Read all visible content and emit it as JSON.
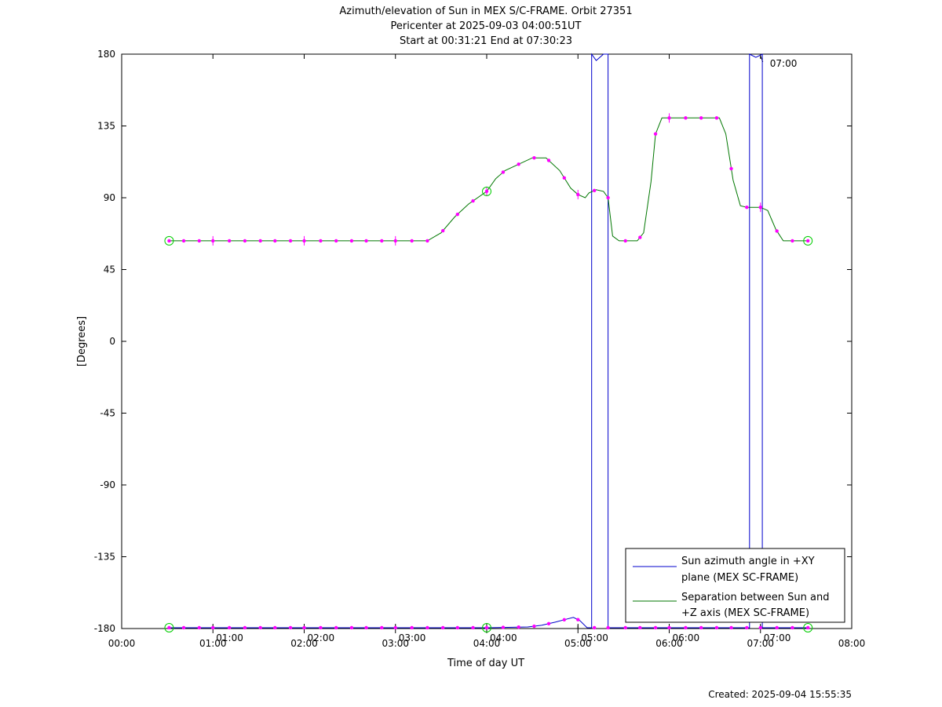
{
  "chart_data": {
    "type": "line",
    "title": [
      "Azimuth/elevation of Sun in MEX S/C-FRAME.  Orbit 27351",
      "Pericenter at 2025-09-03 04:00:51UT",
      "Start at 00:31:21 End at 07:30:23"
    ],
    "xlabel": "Time of day UT",
    "ylabel": "[Degrees]",
    "xlim": [
      0,
      8
    ],
    "ylim": [
      -180,
      180
    ],
    "x_ticks": [
      0,
      1,
      2,
      3,
      4,
      5,
      6,
      7,
      8
    ],
    "x_tick_labels": [
      "00:00",
      "01:00",
      "02:00",
      "03:00",
      "04:00",
      "05:00",
      "06:00",
      "07:00",
      "08:00"
    ],
    "y_ticks": [
      180,
      135,
      90,
      45,
      0,
      -45,
      -90,
      -135,
      -180
    ],
    "y_tick_labels": [
      "180",
      "135",
      "90",
      "45",
      "0",
      "-45",
      "-90",
      "-135",
      "-180"
    ],
    "orbit_time_labels": [
      {
        "x": 1.0,
        "text": "01:00"
      },
      {
        "x": 2.0,
        "text": "02:00"
      },
      {
        "x": 3.0,
        "text": "03:00"
      },
      {
        "x": 4.0,
        "text": "04:00"
      },
      {
        "x": 5.0,
        "text": "05:00"
      },
      {
        "x": 6.0,
        "text": "06:00"
      },
      {
        "x": 7.0,
        "text": "07:00"
      }
    ],
    "top_time_label": {
      "x": 7.0,
      "text": "07:00"
    },
    "series": [
      {
        "name": "Sun azimuth angle in +XY plane (MEX SC-FRAME)",
        "legend_lines": [
          "Sun azimuth angle in +XY",
          "plane (MEX SC-FRAME)"
        ],
        "color": "#0000cc",
        "points": [
          [
            0.52,
            -179.5
          ],
          [
            3.0,
            -179.5
          ],
          [
            4.0,
            -179.5
          ],
          [
            4.45,
            -179.0
          ],
          [
            4.6,
            -178.0
          ],
          [
            4.75,
            -176.0
          ],
          [
            4.85,
            -174.5
          ],
          [
            4.95,
            -173.0
          ],
          [
            5.02,
            -175.0
          ],
          [
            5.1,
            -179.5
          ],
          [
            5.15,
            -179.5
          ],
          [
            5.15,
            180
          ],
          [
            5.2,
            176
          ],
          [
            5.28,
            180
          ],
          [
            5.33,
            180
          ],
          [
            5.33,
            -179.5
          ],
          [
            6.0,
            -179.5
          ],
          [
            6.88,
            -179.5
          ],
          [
            6.88,
            180
          ],
          [
            6.95,
            178
          ],
          [
            7.02,
            180
          ],
          [
            7.02,
            -179.5
          ],
          [
            7.52,
            -179.5
          ]
        ]
      },
      {
        "name": "Separation between Sun and +Z axis (MEX SC-FRAME)",
        "legend_lines": [
          "Separation between Sun and",
          "+Z axis (MEX SC-FRAME)"
        ],
        "color": "#007700",
        "points": [
          [
            0.52,
            63.0
          ],
          [
            1.0,
            63.0
          ],
          [
            2.0,
            63.0
          ],
          [
            3.0,
            63.0
          ],
          [
            3.25,
            63.0
          ],
          [
            3.35,
            63.0
          ],
          [
            3.5,
            68.0
          ],
          [
            3.65,
            78.0
          ],
          [
            3.8,
            86.0
          ],
          [
            4.0,
            94.0
          ],
          [
            4.1,
            102.0
          ],
          [
            4.2,
            107.0
          ],
          [
            4.35,
            111.0
          ],
          [
            4.5,
            115.0
          ],
          [
            4.65,
            115.0
          ],
          [
            4.8,
            107.0
          ],
          [
            4.92,
            96.0
          ],
          [
            5.0,
            92.0
          ],
          [
            5.08,
            90.0
          ],
          [
            5.12,
            93.0
          ],
          [
            5.2,
            95.0
          ],
          [
            5.28,
            94.0
          ],
          [
            5.33,
            90.0
          ],
          [
            5.38,
            66.0
          ],
          [
            5.45,
            63.0
          ],
          [
            5.65,
            63.0
          ],
          [
            5.72,
            68.0
          ],
          [
            5.8,
            100.0
          ],
          [
            5.85,
            130.0
          ],
          [
            5.92,
            140.0
          ],
          [
            6.0,
            140.0
          ],
          [
            6.2,
            140.0
          ],
          [
            6.4,
            140.0
          ],
          [
            6.55,
            140.0
          ],
          [
            6.62,
            130.0
          ],
          [
            6.7,
            101.0
          ],
          [
            6.78,
            85.0
          ],
          [
            6.85,
            84.0
          ],
          [
            7.0,
            84.0
          ],
          [
            7.08,
            82.0
          ],
          [
            7.17,
            70.0
          ],
          [
            7.25,
            63.0
          ],
          [
            7.52,
            63.0
          ]
        ],
        "marker_x": [
          0.52,
          0.68,
          0.85,
          1.0,
          1.18,
          1.35,
          1.52,
          1.68,
          1.85,
          2.0,
          2.18,
          2.35,
          2.52,
          2.68,
          2.85,
          3.0,
          3.18,
          3.35,
          3.52,
          3.68,
          3.85,
          4.0,
          4.18,
          4.35,
          4.52,
          4.68,
          4.85,
          5.0,
          5.18,
          5.33,
          5.52,
          5.68,
          5.85,
          6.0,
          6.18,
          6.35,
          6.52,
          6.68,
          6.85,
          7.0,
          7.18,
          7.35,
          7.52
        ]
      }
    ],
    "circle_markers": [
      {
        "x": 0.52,
        "y": 63.0
      },
      {
        "x": 4.0,
        "y": 94.0
      },
      {
        "x": 7.52,
        "y": 63.0
      },
      {
        "x": 0.52,
        "y": -179.5
      },
      {
        "x": 4.0,
        "y": -179.5
      },
      {
        "x": 7.52,
        "y": -179.5
      }
    ],
    "grid": false,
    "legend_position": "bottom-right"
  },
  "footer": {
    "created": "Created: 2025-09-04 15:55:35"
  }
}
